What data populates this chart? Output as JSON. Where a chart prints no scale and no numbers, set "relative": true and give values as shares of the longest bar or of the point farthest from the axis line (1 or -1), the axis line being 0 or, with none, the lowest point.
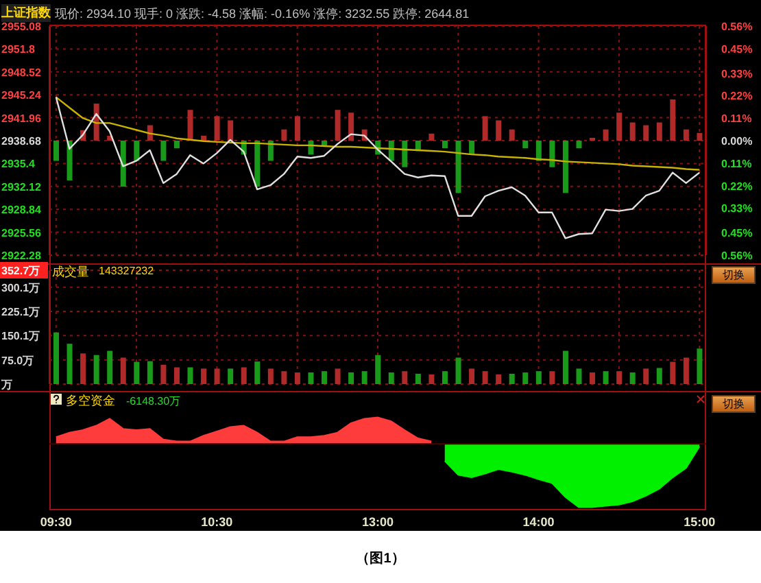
{
  "chart_data": [
    {
      "type": "line",
      "title": "上证指数",
      "annotations": [
        "现价: 2934.10 现手: 0 涨跌: -4.58 涨幅: -0.16% 涨停: 3232.55 跌停: 2644.81"
      ],
      "categories": [
        null,
        null,
        null,
        null,
        null,
        null,
        null,
        null,
        null,
        null,
        null,
        null,
        null,
        null,
        null,
        null,
        null,
        null,
        null,
        null,
        null,
        null,
        null,
        null,
        null,
        null,
        null,
        null,
        null,
        null,
        null,
        null,
        null,
        null,
        null,
        null,
        null,
        null,
        null,
        null,
        null,
        null,
        null,
        null,
        null,
        null,
        null,
        null,
        null
      ],
      "tick_labels": "y",
      "ylim": [
        2922.28,
        2955.08
      ],
      "yticks": [
        2922.28,
        2925.56,
        2928.84,
        2932.12,
        2935.4,
        2938.68,
        2941.96,
        2945.24,
        2948.52,
        2951.8,
        2955.08
      ],
      "y2lim": [
        -0.56,
        0.56
      ],
      "y2ticks": [
        {
          "value": -0.56,
          "label": "0.56%"
        },
        {
          "value": -0.45,
          "label": "0.45%"
        },
        {
          "value": -0.33,
          "label": "0.33%"
        },
        {
          "value": -0.22,
          "label": "0.22%"
        },
        {
          "value": -0.11,
          "label": "0.11%"
        },
        {
          "value": 0,
          "label": "0.00%"
        },
        {
          "value": 0.11,
          "label": "0.11%"
        },
        {
          "value": 0.22,
          "label": "0.22%"
        },
        {
          "value": 0.33,
          "label": "0.33%"
        },
        {
          "value": 0.45,
          "label": "0.45%"
        },
        {
          "value": 0.56,
          "label": "0.56%"
        }
      ],
      "grid": true,
      "marker": "none",
      "line_style": "solid",
      "series": [
        {
          "type": "bar",
          "base": [
            2938.68,
            2938.68,
            2938.68,
            2938.68,
            2938.68,
            2938.68,
            2938.68,
            2938.68,
            2938.68,
            2938.68,
            2938.68,
            2938.68,
            2938.68,
            2938.68,
            2938.68,
            2938.68,
            2938.68,
            2938.68,
            2938.68,
            2938.68,
            2938.68,
            2938.68,
            2938.68,
            2938.68,
            2938.68,
            2938.68,
            2938.68,
            2938.68,
            2938.68,
            2938.68,
            2938.68,
            2938.68,
            2938.68,
            2938.68,
            2938.68,
            2938.68,
            2938.68,
            2938.68,
            2938.68,
            2938.68,
            2938.68,
            2938.68,
            2938.68,
            2938.68,
            2938.68,
            2938.68,
            2938.68,
            2938.68,
            2938.68
          ],
          "values": [
            -2.9,
            -5.7,
            1.5,
            5.3,
            0.7,
            -6.6,
            -2.9,
            2.2,
            -2.9,
            -1.1,
            4.4,
            0.7,
            3.5,
            2.9,
            -2.0,
            -6.6,
            -2.9,
            1.6,
            3.5,
            -2.0,
            -0.7,
            4.4,
            4.0,
            1.6,
            -2.0,
            -2.9,
            -3.8,
            -1.5,
            1.0,
            -1.1,
            -7.5,
            -2.0,
            3.5,
            2.9,
            1.6,
            -1.1,
            -2.9,
            -3.8,
            -7.5,
            -1.1,
            0.4,
            1.6,
            4.0,
            2.6,
            2.2,
            2.6,
            5.9,
            1.6,
            1.1
          ],
          "colors": [
            "#1a9a1a",
            "#1a9a1a",
            "#b02a2a",
            "#b02a2a",
            "#b02a2a",
            "#1a9a1a",
            "#1a9a1a",
            "#b02a2a",
            "#1a9a1a",
            "#1a9a1a",
            "#b02a2a",
            "#b02a2a",
            "#b02a2a",
            "#b02a2a",
            "#1a9a1a",
            "#1a9a1a",
            "#1a9a1a",
            "#b02a2a",
            "#b02a2a",
            "#1a9a1a",
            "#1a9a1a",
            "#b02a2a",
            "#b02a2a",
            "#b02a2a",
            "#1a9a1a",
            "#1a9a1a",
            "#1a9a1a",
            "#1a9a1a",
            "#b02a2a",
            "#1a9a1a",
            "#1a9a1a",
            "#1a9a1a",
            "#b02a2a",
            "#b02a2a",
            "#b02a2a",
            "#1a9a1a",
            "#1a9a1a",
            "#1a9a1a",
            "#1a9a1a",
            "#1a9a1a",
            "#b02a2a",
            "#b02a2a",
            "#b02a2a",
            "#b02a2a",
            "#b02a2a",
            "#b02a2a",
            "#b02a2a",
            "#b02a2a",
            "#b02a2a"
          ]
        },
        {
          "type": "line",
          "color": "#c8b400",
          "values": [
            2944.9,
            2943.4,
            2941.9,
            2941.2,
            2941.2,
            2940.7,
            2940.2,
            2939.7,
            2939.4,
            2939.0,
            2938.8,
            2938.6,
            2938.5,
            2938.4,
            2938.3,
            2938.3,
            2938.2,
            2938.1,
            2938.0,
            2938.0,
            2937.9,
            2937.8,
            2937.8,
            2937.7,
            2937.6,
            2937.5,
            2937.4,
            2937.3,
            2937.2,
            2937.1,
            2936.9,
            2936.7,
            2936.6,
            2936.4,
            2936.3,
            2936.2,
            2936.0,
            2935.9,
            2935.7,
            2935.6,
            2935.5,
            2935.4,
            2935.3,
            2935.1,
            2935.0,
            2934.9,
            2934.8,
            2934.6,
            2934.5
          ]
        },
        {
          "type": "line",
          "color": "#e0e0e0",
          "values": [
            2944.9,
            2937.5,
            2939.5,
            2942.5,
            2940.0,
            2935.0,
            2935.8,
            2937.3,
            2932.6,
            2933.9,
            2936.6,
            2935.4,
            2936.9,
            2938.8,
            2937.1,
            2931.7,
            2932.3,
            2933.9,
            2936.4,
            2936.2,
            2936.5,
            2938.2,
            2939.6,
            2939.4,
            2937.4,
            2935.7,
            2933.9,
            2933.4,
            2933.7,
            2933.6,
            2927.9,
            2927.9,
            2930.7,
            2931.5,
            2932.0,
            2930.8,
            2928.4,
            2928.4,
            2924.7,
            2925.3,
            2925.4,
            2928.8,
            2928.6,
            2928.9,
            2930.8,
            2931.5,
            2934.1,
            2932.6,
            2934.1
          ]
        }
      ]
    },
    {
      "type": "bar",
      "annotations": [
        "成交量",
        "143327232",
        "切换"
      ],
      "categories": [
        null,
        null,
        null,
        null,
        null,
        null,
        null,
        null,
        null,
        null,
        null,
        null,
        null,
        null,
        null,
        null,
        null,
        null,
        null,
        null,
        null,
        null,
        null,
        null,
        null,
        null,
        null,
        null,
        null,
        null,
        null,
        null,
        null,
        null,
        null,
        null,
        null,
        null,
        null,
        null,
        null,
        null,
        null,
        null,
        null,
        null,
        null,
        null,
        null
      ],
      "tick_labels": "y",
      "values": [
        160,
        125,
        95,
        90,
        103,
        82,
        69,
        71,
        60,
        52,
        52,
        48,
        48,
        48,
        52,
        70,
        48,
        40,
        36,
        36,
        40,
        48,
        36,
        40,
        90,
        36,
        40,
        32,
        30,
        40,
        82,
        48,
        40,
        30,
        32,
        36,
        40,
        40,
        103,
        48,
        36,
        40,
        40,
        36,
        48,
        50,
        69,
        82,
        110
      ],
      "colors": [
        "#1a9a1a",
        "#1a9a1a",
        "#b02a2a",
        "#1a9a1a",
        "#1a9a1a",
        "#b02a2a",
        "#1a9a1a",
        "#1a9a1a",
        "#b02a2a",
        "#b02a2a",
        "#1a9a1a",
        "#b02a2a",
        "#b02a2a",
        "#1a9a1a",
        "#b02a2a",
        "#1a9a1a",
        "#b02a2a",
        "#b02a2a",
        "#b02a2a",
        "#1a9a1a",
        "#1a9a1a",
        "#b02a2a",
        "#1a9a1a",
        "#1a9a1a",
        "#1a9a1a",
        "#1a9a1a",
        "#b02a2a",
        "#1a9a1a",
        "#b02a2a",
        "#1a9a1a",
        "#1a9a1a",
        "#b02a2a",
        "#b02a2a",
        "#b02a2a",
        "#1a9a1a",
        "#1a9a1a",
        "#1a9a1a",
        "#b02a2a",
        "#1a9a1a",
        "#1a9a1a",
        "#b02a2a",
        "#1a9a1a",
        "#b02a2a",
        "#1a9a1a",
        "#b02a2a",
        "#1a9a1a",
        "#b02a2a",
        "#b02a2a",
        "#1a9a1a"
      ],
      "ylim": [
        0,
        352.7
      ],
      "yticks": [
        {
          "value": 0,
          "label": "万"
        },
        {
          "value": 75.0,
          "label": "75.0万"
        },
        {
          "value": 150.1,
          "label": "150.1万"
        },
        {
          "value": 225.1,
          "label": "225.1万"
        },
        {
          "value": 300.1,
          "label": "300.1万"
        },
        {
          "value": 352.7,
          "label": "352.7万"
        }
      ],
      "grid": true
    },
    {
      "type": "area",
      "relative": true,
      "annotations": [
        "多空资金",
        "-6148.30万",
        "切换",
        "（图1）"
      ],
      "categories": [
        "09:30",
        null,
        null,
        null,
        null,
        null,
        null,
        null,
        null,
        null,
        null,
        null,
        "10:30",
        null,
        null,
        null,
        null,
        null,
        null,
        null,
        null,
        null,
        null,
        null,
        "13:00",
        null,
        null,
        null,
        null,
        null,
        null,
        null,
        null,
        null,
        null,
        null,
        "14:00",
        null,
        null,
        null,
        null,
        null,
        null,
        null,
        null,
        null,
        null,
        null,
        "15:00"
      ],
      "series": [
        {
          "color": "#ff3c3c",
          "values": [
            0.11,
            0.18,
            0.22,
            0.29,
            0.4,
            0.24,
            0.22,
            0.24,
            0.07,
            0.04,
            0.04,
            0.13,
            0.2,
            0.27,
            0.29,
            0.18,
            0.04,
            0.04,
            0.11,
            0.11,
            0.13,
            0.18,
            0.33,
            0.4,
            0.42,
            0.36,
            0.22,
            0.09,
            0.04,
            null,
            null,
            null,
            null,
            null,
            null,
            null,
            null,
            null,
            null,
            null,
            null,
            null,
            null,
            null,
            null,
            null,
            null,
            null,
            null
          ]
        },
        {
          "color": "#00f000",
          "values": [
            null,
            null,
            null,
            null,
            null,
            null,
            null,
            null,
            null,
            null,
            null,
            null,
            null,
            null,
            null,
            null,
            null,
            null,
            null,
            null,
            null,
            null,
            null,
            null,
            null,
            null,
            null,
            null,
            null,
            -0.27,
            -0.49,
            -0.53,
            -0.47,
            -0.4,
            -0.44,
            -0.49,
            -0.56,
            -0.62,
            -0.84,
            -1,
            -1,
            -0.98,
            -0.96,
            -0.91,
            -0.82,
            -0.71,
            -0.53,
            -0.38,
            -0.04
          ]
        }
      ]
    }
  ]
}
